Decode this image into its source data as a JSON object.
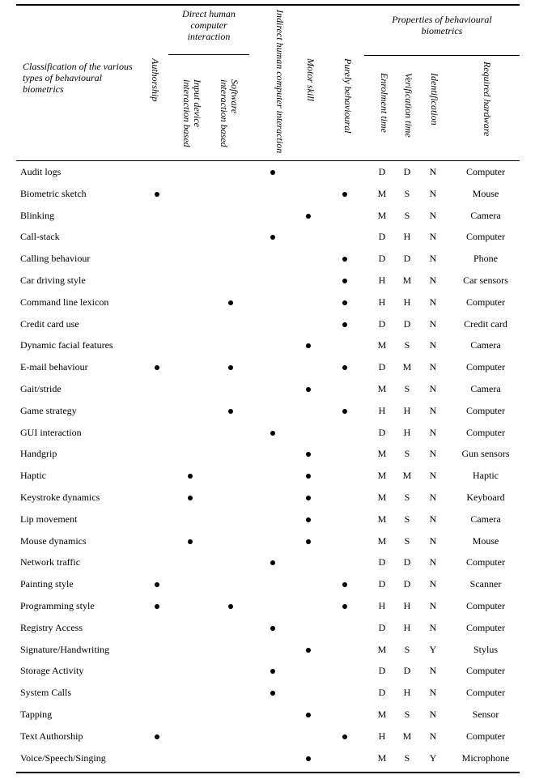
{
  "header": {
    "classification": "Classification of the various types of behavioural biometrics",
    "group_direct": "Direct human computer interaction",
    "group_properties": "Properties of behavioural biometrics",
    "columns": {
      "authorship": "Authorship",
      "input_device": "Input device interaction based",
      "software": "Software interaction based",
      "indirect": "Indirect human computer interaction",
      "motor": "Motor skill",
      "purely": "Purely behavioural",
      "enrolment": "Enrolment time",
      "verification": "Verification time",
      "identification": "Identification",
      "hardware": "Required hardware"
    }
  },
  "dot_columns": [
    "authorship",
    "input_device",
    "software",
    "indirect",
    "motor",
    "purely"
  ],
  "rows": [
    {
      "name": "Audit logs",
      "marks": [
        0,
        0,
        0,
        1,
        0,
        0
      ],
      "enrol": "D",
      "verif": "D",
      "ident": "N",
      "hw": "Computer"
    },
    {
      "name": "Biometric sketch",
      "marks": [
        1,
        0,
        0,
        0,
        0,
        1
      ],
      "enrol": "M",
      "verif": "S",
      "ident": "N",
      "hw": "Mouse"
    },
    {
      "name": "Blinking",
      "marks": [
        0,
        0,
        0,
        0,
        1,
        0
      ],
      "enrol": "M",
      "verif": "S",
      "ident": "N",
      "hw": "Camera"
    },
    {
      "name": "Call-stack",
      "marks": [
        0,
        0,
        0,
        1,
        0,
        0
      ],
      "enrol": "D",
      "verif": "H",
      "ident": "N",
      "hw": "Computer"
    },
    {
      "name": "Calling behaviour",
      "marks": [
        0,
        0,
        0,
        0,
        0,
        1
      ],
      "enrol": "D",
      "verif": "D",
      "ident": "N",
      "hw": "Phone"
    },
    {
      "name": "Car driving style",
      "marks": [
        0,
        0,
        0,
        0,
        0,
        1
      ],
      "enrol": "H",
      "verif": "M",
      "ident": "N",
      "hw": "Car sensors"
    },
    {
      "name": "Command line lexicon",
      "marks": [
        0,
        0,
        1,
        0,
        0,
        1
      ],
      "enrol": "H",
      "verif": "H",
      "ident": "N",
      "hw": "Computer"
    },
    {
      "name": "Credit card use",
      "marks": [
        0,
        0,
        0,
        0,
        0,
        1
      ],
      "enrol": "D",
      "verif": "D",
      "ident": "N",
      "hw": "Credit card"
    },
    {
      "name": "Dynamic facial features",
      "marks": [
        0,
        0,
        0,
        0,
        1,
        0
      ],
      "enrol": "M",
      "verif": "S",
      "ident": "N",
      "hw": "Camera"
    },
    {
      "name": "E-mail behaviour",
      "marks": [
        1,
        0,
        1,
        0,
        0,
        1
      ],
      "enrol": "D",
      "verif": "M",
      "ident": "N",
      "hw": "Computer"
    },
    {
      "name": "Gait/stride",
      "marks": [
        0,
        0,
        0,
        0,
        1,
        0
      ],
      "enrol": "M",
      "verif": "S",
      "ident": "N",
      "hw": "Camera"
    },
    {
      "name": "Game strategy",
      "marks": [
        0,
        0,
        1,
        0,
        0,
        1
      ],
      "enrol": "H",
      "verif": "H",
      "ident": "N",
      "hw": "Computer"
    },
    {
      "name": "GUI interaction",
      "marks": [
        0,
        0,
        0,
        1,
        0,
        0
      ],
      "enrol": "D",
      "verif": "H",
      "ident": "N",
      "hw": "Computer"
    },
    {
      "name": "Handgrip",
      "marks": [
        0,
        0,
        0,
        0,
        1,
        0
      ],
      "enrol": "M",
      "verif": "S",
      "ident": "N",
      "hw": "Gun sensors"
    },
    {
      "name": "Haptic",
      "marks": [
        0,
        1,
        0,
        0,
        1,
        0
      ],
      "enrol": "M",
      "verif": "M",
      "ident": "N",
      "hw": "Haptic"
    },
    {
      "name": "Keystroke dynamics",
      "marks": [
        0,
        1,
        0,
        0,
        1,
        0
      ],
      "enrol": "M",
      "verif": "S",
      "ident": "N",
      "hw": "Keyboard"
    },
    {
      "name": "Lip movement",
      "marks": [
        0,
        0,
        0,
        0,
        1,
        0
      ],
      "enrol": "M",
      "verif": "S",
      "ident": "N",
      "hw": "Camera"
    },
    {
      "name": "Mouse dynamics",
      "marks": [
        0,
        1,
        0,
        0,
        1,
        0
      ],
      "enrol": "M",
      "verif": "S",
      "ident": "N",
      "hw": "Mouse"
    },
    {
      "name": "Network traffic",
      "marks": [
        0,
        0,
        0,
        1,
        0,
        0
      ],
      "enrol": "D",
      "verif": "D",
      "ident": "N",
      "hw": "Computer"
    },
    {
      "name": "Painting style",
      "marks": [
        1,
        0,
        0,
        0,
        0,
        1
      ],
      "enrol": "D",
      "verif": "D",
      "ident": "N",
      "hw": "Scanner"
    },
    {
      "name": "Programming style",
      "marks": [
        1,
        0,
        1,
        0,
        0,
        1
      ],
      "enrol": "H",
      "verif": "H",
      "ident": "N",
      "hw": "Computer"
    },
    {
      "name": "Registry Access",
      "marks": [
        0,
        0,
        0,
        1,
        0,
        0
      ],
      "enrol": "D",
      "verif": "H",
      "ident": "N",
      "hw": "Computer"
    },
    {
      "name": "Signature/Handwriting",
      "marks": [
        0,
        0,
        0,
        0,
        1,
        0
      ],
      "enrol": "M",
      "verif": "S",
      "ident": "Y",
      "hw": "Stylus"
    },
    {
      "name": "Storage Activity",
      "marks": [
        0,
        0,
        0,
        1,
        0,
        0
      ],
      "enrol": "D",
      "verif": "D",
      "ident": "N",
      "hw": "Computer"
    },
    {
      "name": "System Calls",
      "marks": [
        0,
        0,
        0,
        1,
        0,
        0
      ],
      "enrol": "D",
      "verif": "H",
      "ident": "N",
      "hw": "Computer"
    },
    {
      "name": "Tapping",
      "marks": [
        0,
        0,
        0,
        0,
        1,
        0
      ],
      "enrol": "M",
      "verif": "S",
      "ident": "N",
      "hw": "Sensor"
    },
    {
      "name": "Text Authorship",
      "marks": [
        1,
        0,
        0,
        0,
        0,
        1
      ],
      "enrol": "H",
      "verif": "M",
      "ident": "N",
      "hw": "Computer"
    },
    {
      "name": "Voice/Speech/Singing",
      "marks": [
        0,
        0,
        0,
        0,
        1,
        0
      ],
      "enrol": "M",
      "verif": "S",
      "ident": "Y",
      "hw": "Microphone"
    }
  ]
}
